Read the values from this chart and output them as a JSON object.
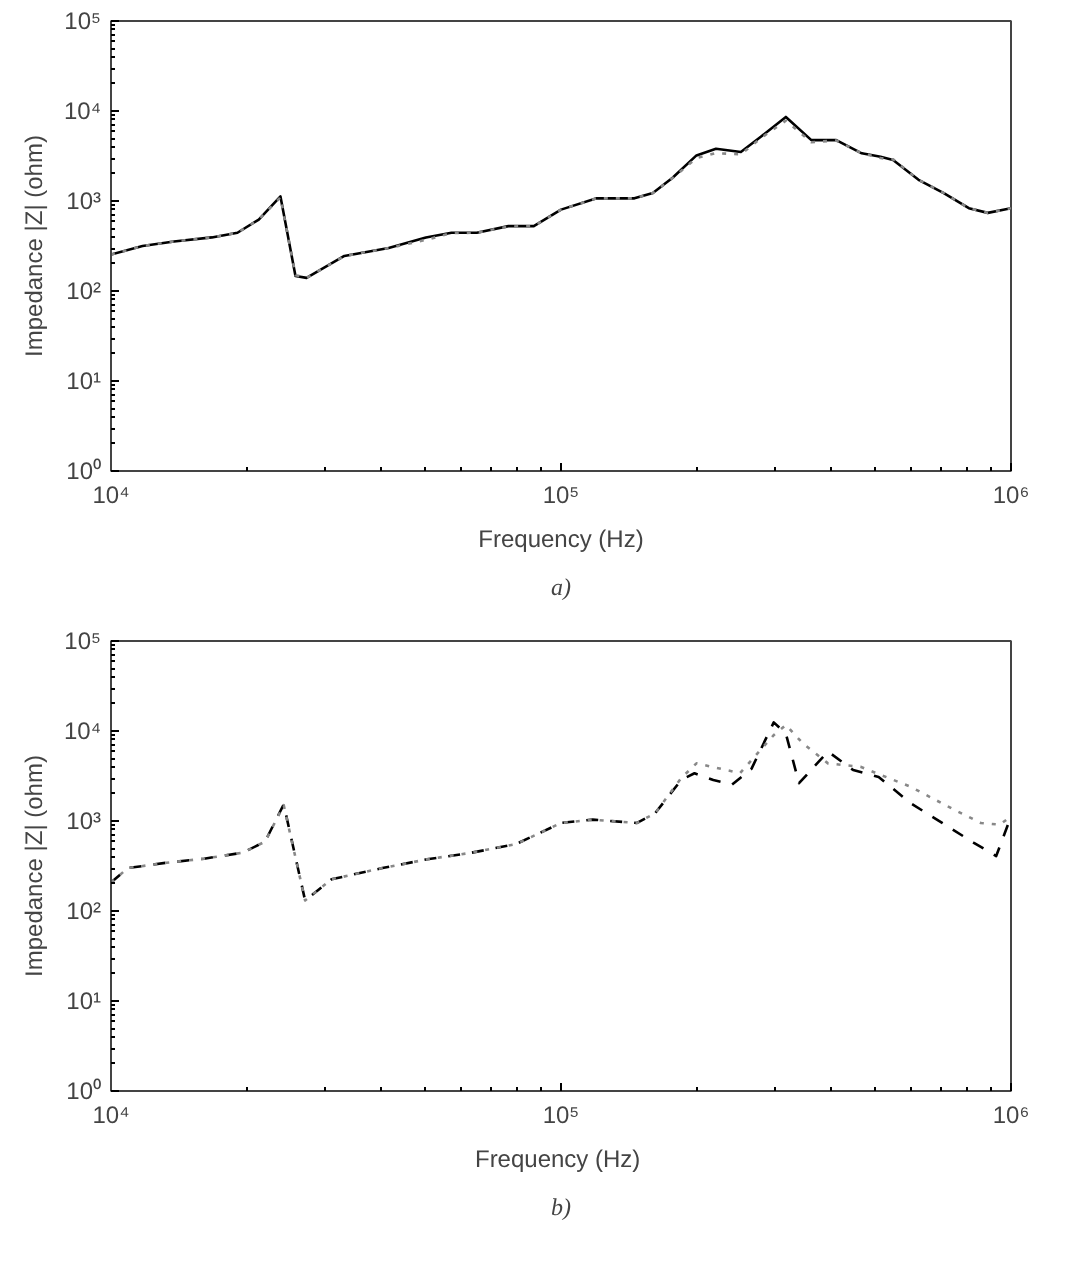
{
  "chart_data": [
    {
      "type": "line",
      "xlabel": "Frequency (Hz)",
      "ylabel": "Impedance |Z| (ohm)",
      "annotations": [
        "a)"
      ],
      "log": "xy",
      "grid": false,
      "xlim": [
        10000,
        1000000
      ],
      "ylim": [
        1,
        100000
      ],
      "xticks": [
        {
          "value": 10000,
          "label": "10⁴"
        },
        {
          "value": 100000,
          "label": "10⁵"
        },
        {
          "value": 1000000,
          "label": "10⁶"
        }
      ],
      "yticks": [
        {
          "value": 1,
          "label": "10⁰"
        },
        {
          "value": 10,
          "label": "10¹"
        },
        {
          "value": 100,
          "label": "10²"
        },
        {
          "value": 1000,
          "label": "10³"
        },
        {
          "value": 10000,
          "label": "10⁴"
        },
        {
          "value": 100000,
          "label": "10⁵"
        }
      ],
      "series": [
        {
          "color": "#000000",
          "line_style": "solid",
          "x": [
            10000,
            11750,
            13800,
            16750,
            19100,
            21300,
            23800,
            25700,
            27200,
            33000,
            41400,
            50100,
            57100,
            65000,
            76400,
            87000,
            100000,
            120000,
            145600,
            160000,
            177000,
            200000,
            221000,
            251000,
            278000,
            316000,
            360000,
            409000,
            466000,
            513000,
            547000,
            623000,
            709000,
            806000,
            888000,
            1000000
          ],
          "values": [
            254,
            316,
            355,
            394,
            444,
            622,
            1125,
            147,
            140,
            245,
            300,
            394,
            444,
            444,
            526,
            526,
            802,
            1070,
            1070,
            1225,
            1810,
            3210,
            3800,
            3500,
            5170,
            8590,
            4750,
            4750,
            3390,
            3100,
            2860,
            1720,
            1225,
            831,
            738,
            831
          ]
        },
        {
          "color": "#888888",
          "line_style": "dotted",
          "x": [
            10000,
            11750,
            13800,
            16750,
            19100,
            21300,
            23800,
            25700,
            27200,
            33000,
            41400,
            50100,
            57100,
            65000,
            76400,
            87000,
            100000,
            120000,
            145600,
            160000,
            177000,
            200000,
            221000,
            251000,
            278000,
            316000,
            360000,
            409000,
            466000,
            513000,
            547000,
            623000,
            709000,
            806000,
            888000,
            1000000
          ],
          "values": [
            254,
            316,
            355,
            394,
            444,
            622,
            1100,
            150,
            140,
            245,
            300,
            370,
            440,
            444,
            520,
            526,
            802,
            1070,
            1070,
            1225,
            1800,
            3000,
            3400,
            3300,
            5000,
            7800,
            4500,
            4700,
            3390,
            3000,
            2900,
            1720,
            1225,
            831,
            738,
            831
          ]
        }
      ]
    },
    {
      "type": "line",
      "xlabel": "Frequency  (Hz)",
      "ylabel": "Impedance |Z| (ohm)",
      "annotations": [
        "b)"
      ],
      "log": "xy",
      "grid": false,
      "xlim": [
        10000,
        1000000
      ],
      "ylim": [
        1,
        100000
      ],
      "xticks": [
        {
          "value": 10000,
          "label": "10⁴"
        },
        {
          "value": 100000,
          "label": "10⁵"
        },
        {
          "value": 1000000,
          "label": "10⁶"
        }
      ],
      "yticks": [
        {
          "value": 1,
          "label": "10⁰"
        },
        {
          "value": 10,
          "label": "10¹"
        },
        {
          "value": 100,
          "label": "10²"
        },
        {
          "value": 1000,
          "label": "10³"
        },
        {
          "value": 10000,
          "label": "10⁴"
        },
        {
          "value": 100000,
          "label": "10⁵"
        }
      ],
      "series": [
        {
          "color": "#000000",
          "line_style": "dashed",
          "x": [
            10000,
            10900,
            13300,
            16100,
            19600,
            22000,
            24200,
            27000,
            30900,
            40100,
            50400,
            63200,
            79400,
            100000,
            117600,
            147600,
            162000,
            185000,
            198000,
            218000,
            240000,
            265000,
            297000,
            316000,
            338000,
            392000,
            446000,
            508000,
            598000,
            703000,
            827000,
            927000,
            1000000
          ],
          "values": [
            207,
            300,
            344,
            381,
            444,
            590,
            1530,
            131,
            225,
            300,
            375,
            444,
            553,
            951,
            1035,
            951,
            1225,
            2860,
            3390,
            2860,
            2540,
            3800,
            12470,
            9350,
            2630,
            5920,
            3680,
            3090,
            1580,
            951,
            572,
            408,
            1125
          ]
        },
        {
          "color": "#888888",
          "line_style": "dotted",
          "x": [
            10000,
            10900,
            13300,
            16100,
            19600,
            22000,
            24200,
            27000,
            30900,
            40100,
            50400,
            63200,
            79400,
            100000,
            117600,
            147600,
            162000,
            185000,
            200000,
            250000,
            297000,
            316000,
            345000,
            392000,
            463000,
            598000,
            749000,
            857000,
            944000,
            1000000
          ],
          "values": [
            207,
            300,
            344,
            381,
            444,
            590,
            1500,
            131,
            225,
            300,
            375,
            444,
            553,
            951,
            1035,
            951,
            1225,
            3000,
            4370,
            3400,
            9000,
            11650,
            7250,
            4370,
            4000,
            2400,
            1330,
            951,
            910,
            1125
          ]
        }
      ]
    }
  ]
}
